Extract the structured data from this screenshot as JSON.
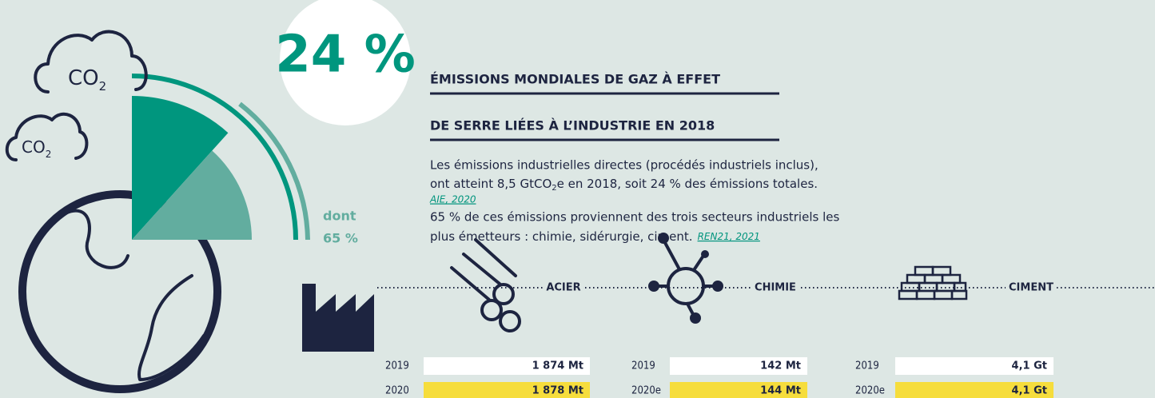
{
  "headline_percent": "24 %",
  "title": [
    "ÉMISSIONS MONDIALES DE GAZ À EFFET",
    "DE SERRE LIÉES À L’INDUSTRIE EN 2018"
  ],
  "paragraph_1": {
    "line_1": "Les émissions industrielles directes (procédés industriels inclus),",
    "line_2_before": "ont atteint 8,5 GtCO",
    "line_2_sub": "2",
    "line_2_after": "e en 2018, soit 24 % des émissions totales.",
    "source": "AIE, 2020"
  },
  "paragraph_2": {
    "line_1": "65 % de ces émissions proviennent des trois secteurs industriels les",
    "line_2": "plus émetteurs : chimie, sidérurgie, ciment.",
    "source": "REN21, 2021"
  },
  "share": {
    "label": "dont",
    "value": "65 %"
  },
  "clouds": [
    {
      "text": "CO",
      "sub": "2"
    },
    {
      "text": "CO",
      "sub": "2"
    }
  ],
  "sectors": [
    {
      "name": "ACIER",
      "rows": [
        {
          "year": "2019",
          "value": "1 874 Mt"
        },
        {
          "year": "2020",
          "value": "1 878 Mt"
        }
      ]
    },
    {
      "name": "CHIMIE",
      "rows": [
        {
          "year": "2019",
          "value": "142 Mt"
        },
        {
          "year": "2020e",
          "value": "144 Mt"
        }
      ]
    },
    {
      "name": "CIMENT",
      "rows": [
        {
          "year": "2019",
          "value": "4,1 Gt"
        },
        {
          "year": "2020e",
          "value": "4,1 Gt"
        }
      ]
    }
  ]
}
